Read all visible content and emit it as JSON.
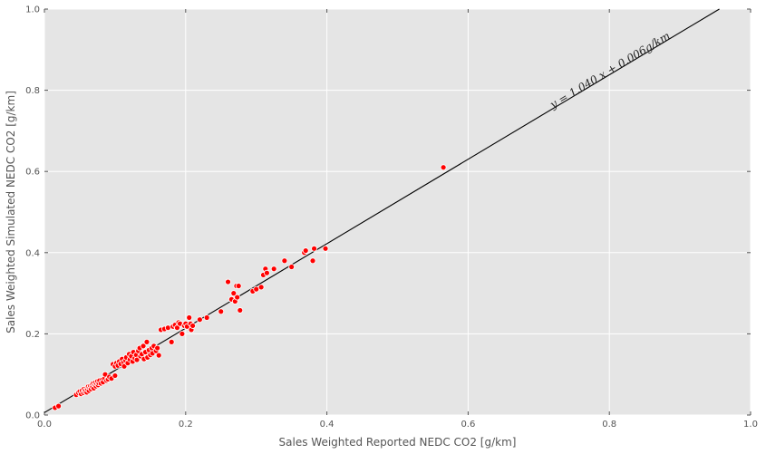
{
  "chart_data": {
    "type": "scatter",
    "title": "",
    "xlabel": "Sales Weighted Reported NEDC CO2 [g/km]",
    "ylabel": "Sales Weighted Simulated NEDC CO2 [g/km]",
    "xlim": [
      0.0,
      1.0
    ],
    "ylim": [
      0.0,
      1.0
    ],
    "x_ticks": [
      "0.0",
      "0.2",
      "0.4",
      "0.6",
      "0.8",
      "1.0"
    ],
    "y_ticks": [
      "0.0",
      "0.2",
      "0.4",
      "0.6",
      "0.8",
      "1.0"
    ],
    "grid": true,
    "background": "#e5e5e5",
    "grid_color": "#ffffff",
    "marker_color": "#ff0000",
    "marker_edge": "#ffffff",
    "fit_line": {
      "slope": 1.04,
      "intercept": 0.006,
      "color": "#000000"
    },
    "annotation": "y = 1.040 x + 0.006g/km",
    "points": [
      [
        0.015,
        0.018
      ],
      [
        0.02,
        0.022
      ],
      [
        0.045,
        0.05
      ],
      [
        0.048,
        0.055
      ],
      [
        0.05,
        0.058
      ],
      [
        0.052,
        0.052
      ],
      [
        0.053,
        0.06
      ],
      [
        0.055,
        0.055
      ],
      [
        0.056,
        0.064
      ],
      [
        0.057,
        0.058
      ],
      [
        0.058,
        0.061
      ],
      [
        0.06,
        0.066
      ],
      [
        0.06,
        0.056
      ],
      [
        0.061,
        0.063
      ],
      [
        0.062,
        0.07
      ],
      [
        0.063,
        0.06
      ],
      [
        0.064,
        0.068
      ],
      [
        0.065,
        0.072
      ],
      [
        0.066,
        0.064
      ],
      [
        0.067,
        0.074
      ],
      [
        0.068,
        0.069
      ],
      [
        0.069,
        0.078
      ],
      [
        0.07,
        0.066
      ],
      [
        0.071,
        0.075
      ],
      [
        0.072,
        0.08
      ],
      [
        0.073,
        0.071
      ],
      [
        0.074,
        0.077
      ],
      [
        0.075,
        0.083
      ],
      [
        0.076,
        0.074
      ],
      [
        0.077,
        0.079
      ],
      [
        0.078,
        0.085
      ],
      [
        0.08,
        0.078
      ],
      [
        0.082,
        0.087
      ],
      [
        0.083,
        0.081
      ],
      [
        0.085,
        0.09
      ],
      [
        0.086,
        0.1
      ],
      [
        0.088,
        0.085
      ],
      [
        0.09,
        0.088
      ],
      [
        0.092,
        0.094
      ],
      [
        0.095,
        0.09
      ],
      [
        0.097,
        0.125
      ],
      [
        0.1,
        0.097
      ],
      [
        0.1,
        0.12
      ],
      [
        0.102,
        0.128
      ],
      [
        0.104,
        0.122
      ],
      [
        0.106,
        0.132
      ],
      [
        0.108,
        0.126
      ],
      [
        0.11,
        0.138
      ],
      [
        0.112,
        0.13
      ],
      [
        0.113,
        0.12
      ],
      [
        0.115,
        0.134
      ],
      [
        0.116,
        0.142
      ],
      [
        0.118,
        0.128
      ],
      [
        0.12,
        0.15
      ],
      [
        0.121,
        0.137
      ],
      [
        0.123,
        0.145
      ],
      [
        0.125,
        0.132
      ],
      [
        0.126,
        0.155
      ],
      [
        0.128,
        0.14
      ],
      [
        0.13,
        0.148
      ],
      [
        0.131,
        0.136
      ],
      [
        0.133,
        0.158
      ],
      [
        0.135,
        0.165
      ],
      [
        0.136,
        0.145
      ],
      [
        0.138,
        0.15
      ],
      [
        0.14,
        0.17
      ],
      [
        0.141,
        0.138
      ],
      [
        0.143,
        0.155
      ],
      [
        0.145,
        0.18
      ],
      [
        0.146,
        0.142
      ],
      [
        0.148,
        0.16
      ],
      [
        0.15,
        0.148
      ],
      [
        0.152,
        0.165
      ],
      [
        0.153,
        0.152
      ],
      [
        0.155,
        0.17
      ],
      [
        0.158,
        0.158
      ],
      [
        0.16,
        0.165
      ],
      [
        0.162,
        0.147
      ],
      [
        0.165,
        0.21
      ],
      [
        0.17,
        0.212
      ],
      [
        0.175,
        0.215
      ],
      [
        0.18,
        0.18
      ],
      [
        0.182,
        0.218
      ],
      [
        0.185,
        0.222
      ],
      [
        0.188,
        0.215
      ],
      [
        0.19,
        0.228
      ],
      [
        0.192,
        0.225
      ],
      [
        0.195,
        0.2
      ],
      [
        0.198,
        0.22
      ],
      [
        0.2,
        0.225
      ],
      [
        0.202,
        0.218
      ],
      [
        0.205,
        0.24
      ],
      [
        0.207,
        0.225
      ],
      [
        0.208,
        0.21
      ],
      [
        0.21,
        0.22
      ],
      [
        0.22,
        0.235
      ],
      [
        0.23,
        0.24
      ],
      [
        0.25,
        0.255
      ],
      [
        0.26,
        0.328
      ],
      [
        0.265,
        0.285
      ],
      [
        0.268,
        0.3
      ],
      [
        0.27,
        0.28
      ],
      [
        0.272,
        0.318
      ],
      [
        0.273,
        0.29
      ],
      [
        0.275,
        0.318
      ],
      [
        0.277,
        0.258
      ],
      [
        0.295,
        0.305
      ],
      [
        0.3,
        0.31
      ],
      [
        0.307,
        0.315
      ],
      [
        0.31,
        0.345
      ],
      [
        0.313,
        0.36
      ],
      [
        0.315,
        0.35
      ],
      [
        0.325,
        0.36
      ],
      [
        0.34,
        0.38
      ],
      [
        0.35,
        0.365
      ],
      [
        0.368,
        0.4
      ],
      [
        0.37,
        0.405
      ],
      [
        0.38,
        0.38
      ],
      [
        0.382,
        0.41
      ],
      [
        0.398,
        0.41
      ],
      [
        0.565,
        0.61
      ]
    ]
  }
}
